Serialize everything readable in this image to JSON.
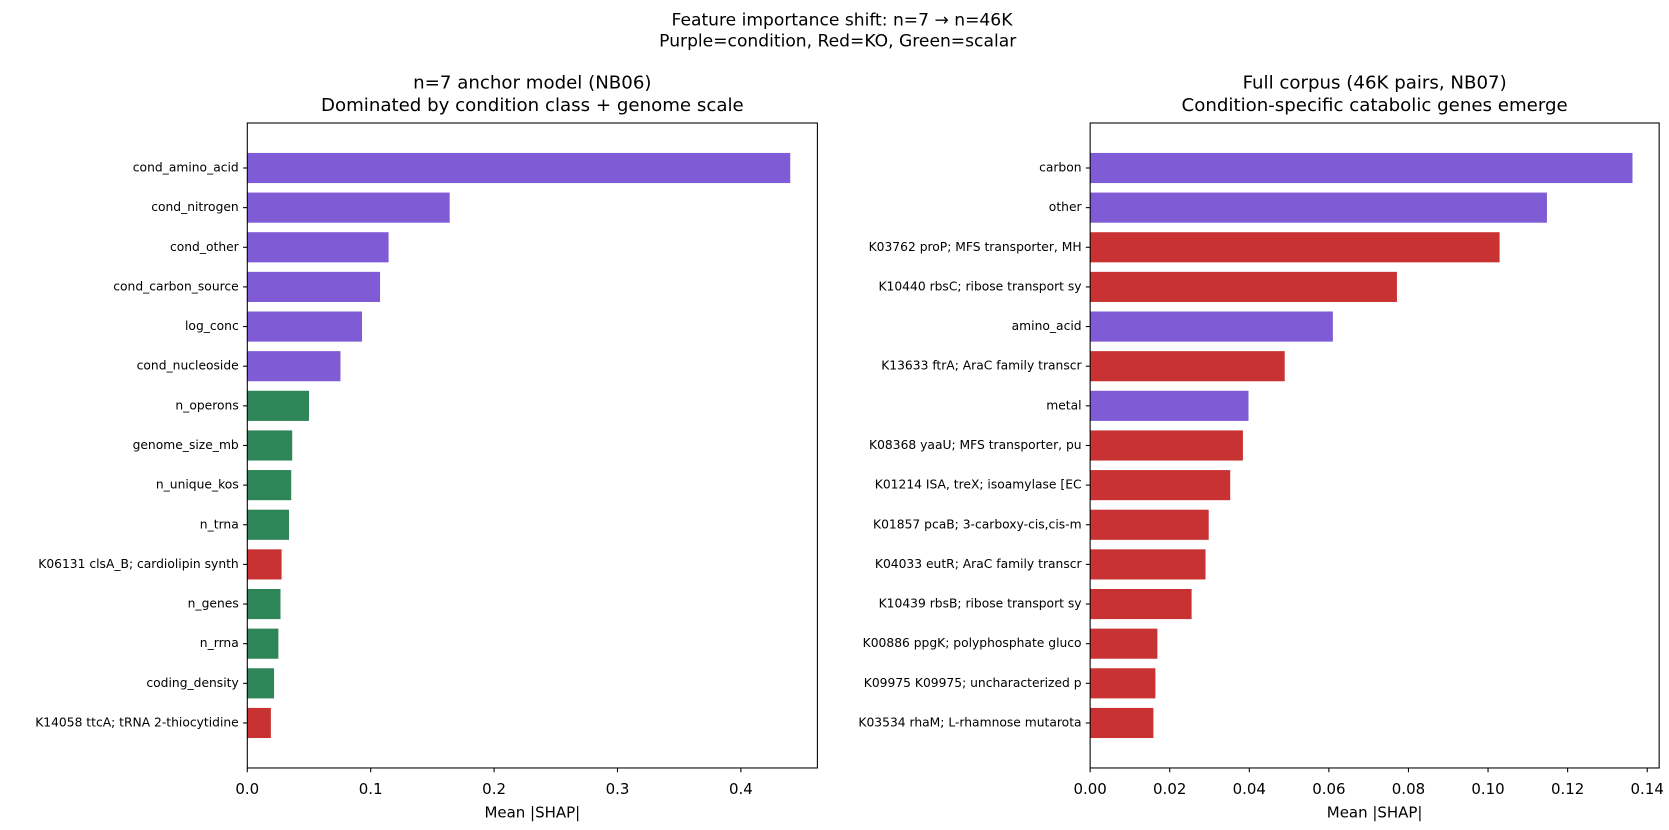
{
  "title": "Feature importance shift: n=7 → n=46K",
  "subtitle": "Purple=condition, Red=KO, Green=scalar",
  "chart_data": [
    {
      "type": "barh",
      "title": "n=7 anchor model (NB06)",
      "subtitle": "Dominated by condition class + genome scale",
      "x_label": "Mean |SHAP|",
      "categories": [
        "cond_amino_acid",
        "cond_nitrogen",
        "cond_other",
        "cond_carbon_source",
        "log_conc",
        "cond_nucleoside",
        "n_operons",
        "genome_size_mb",
        "n_unique_kos",
        "n_trna",
        "K06131 clsA_B; cardiolipin synth",
        "n_genes",
        "n_rrna",
        "coding_density",
        "K14058 ttcA; tRNA 2-thiocytidine"
      ],
      "values": [
        0.44,
        0.164,
        0.1145,
        0.1076,
        0.093,
        0.0755,
        0.05,
        0.0364,
        0.0356,
        0.0338,
        0.0278,
        0.0269,
        0.0252,
        0.0217,
        0.0191
      ],
      "colors": [
        "#7f5bd5",
        "#7f5bd5",
        "#7f5bd5",
        "#7f5bd5",
        "#7f5bd5",
        "#7f5bd5",
        "#2e8557",
        "#2e8557",
        "#2e8557",
        "#2e8557",
        "#c83232",
        "#2e8557",
        "#2e8557",
        "#2e8557",
        "#c83232"
      ],
      "xlim": [
        0,
        0.462
      ],
      "xticks": [
        {
          "value": 0,
          "label": "0.0"
        },
        0.1,
        0.2,
        0.3,
        0.4
      ]
    },
    {
      "type": "barh",
      "title": "Full corpus (46K pairs, NB07)",
      "subtitle": "Condition-specific catabolic genes emerge",
      "x_label": "Mean |SHAP|",
      "categories": [
        "carbon",
        "other",
        "K03762 proP; MFS transporter, MH",
        "K10440 rbsC; ribose transport sy",
        "amino_acid",
        "K13633 ftrA; AraC family transcr",
        "metal",
        "K08368 yaaU; MFS transporter, pu",
        "K01214 ISA, treX; isoamylase [EC",
        "K01857 pcaB; 3-carboxy-cis,cis-m",
        "K04033 eutR; AraC family transcr",
        "K10439 rbsB; ribose transport sy",
        "K00886 ppgK; polyphosphate gluco",
        "K09975 K09975; uncharacterized p",
        "K03534 rhaM; L-rhamnose mutarota"
      ],
      "values": [
        0.1363,
        0.1148,
        0.1029,
        0.0771,
        0.061,
        0.0489,
        0.0398,
        0.0384,
        0.0352,
        0.0298,
        0.029,
        0.0255,
        0.0169,
        0.0164,
        0.0159
      ],
      "colors": [
        "#7f5bd5",
        "#7f5bd5",
        "#c83232",
        "#c83232",
        "#7f5bd5",
        "#c83232",
        "#7f5bd5",
        "#c83232",
        "#c83232",
        "#c83232",
        "#c83232",
        "#c83232",
        "#c83232",
        "#c83232",
        "#c83232"
      ],
      "xlim": [
        0,
        0.143
      ],
      "xticks": [
        {
          "value": 0,
          "label": "0.00"
        },
        0.02,
        0.04,
        0.06,
        0.08,
        {
          "value": 0.1,
          "label": "0.10"
        },
        0.12,
        0.14
      ]
    }
  ]
}
